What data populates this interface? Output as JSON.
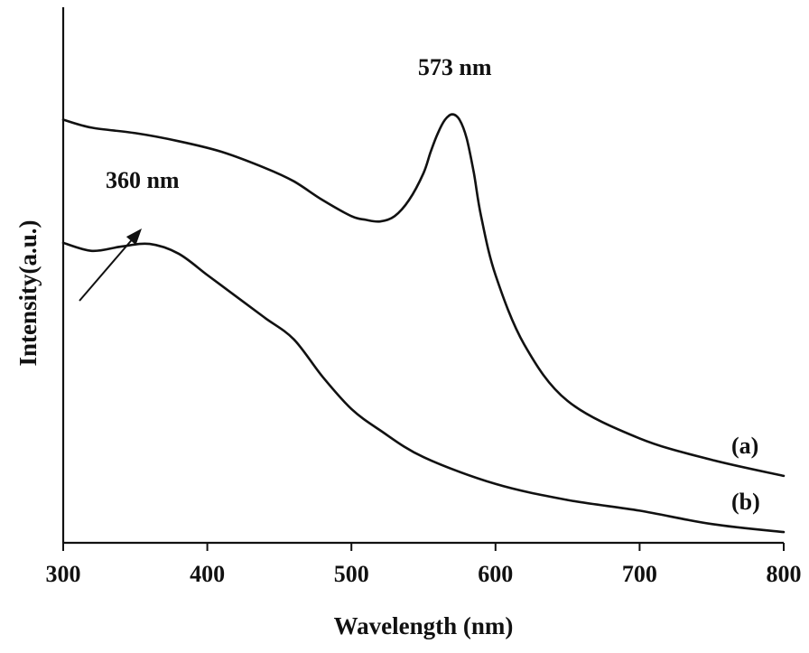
{
  "chart_data": {
    "type": "line",
    "title": "",
    "xlabel": "Wavelength (nm)",
    "ylabel": "Intensity(a.u.)",
    "xlim": [
      300,
      800
    ],
    "ylim": [
      0,
      1
    ],
    "x_ticks": [
      300,
      400,
      500,
      600,
      700,
      800
    ],
    "y_ticks": [],
    "grid": false,
    "legend": "none",
    "series": [
      {
        "name": "(a)",
        "x": [
          300,
          320,
          350,
          380,
          410,
          440,
          460,
          480,
          500,
          510,
          520,
          530,
          540,
          550,
          555,
          560,
          565,
          570,
          575,
          580,
          585,
          590,
          600,
          620,
          650,
          700,
          750,
          800
        ],
        "y": [
          0.79,
          0.775,
          0.765,
          0.75,
          0.73,
          0.7,
          0.675,
          0.64,
          0.61,
          0.603,
          0.6,
          0.61,
          0.64,
          0.69,
          0.73,
          0.765,
          0.79,
          0.8,
          0.79,
          0.755,
          0.69,
          0.61,
          0.5,
          0.37,
          0.265,
          0.195,
          0.155,
          0.125
        ]
      },
      {
        "name": "(b)",
        "x": [
          300,
          320,
          340,
          360,
          380,
          400,
          420,
          440,
          460,
          480,
          500,
          520,
          550,
          600,
          650,
          700,
          750,
          800
        ],
        "y": [
          0.56,
          0.545,
          0.553,
          0.558,
          0.54,
          0.5,
          0.46,
          0.42,
          0.38,
          0.31,
          0.25,
          0.21,
          0.16,
          0.11,
          0.08,
          0.06,
          0.035,
          0.02
        ]
      }
    ],
    "annotations": [
      {
        "text": "573 nm",
        "x": 573
      },
      {
        "text": "360 nm",
        "x": 360
      }
    ]
  }
}
